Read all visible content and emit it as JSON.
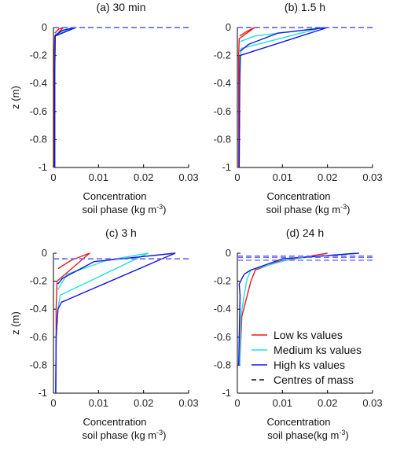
{
  "chart_data": [
    {
      "type": "line",
      "title": "(a) 30 min",
      "xlabel": [
        "Concentration",
        "soil phase (kg m",
        "-3",
        ")"
      ],
      "ylabel": "z (m)",
      "xlim": [
        0,
        0.03
      ],
      "ylim": [
        -1,
        0
      ],
      "xticks": [
        "0",
        "0.01",
        "0.02",
        "0.03"
      ],
      "yticks": [
        "0",
        "-0.2",
        "-0.4",
        "-0.6",
        "-0.8",
        "-1"
      ],
      "series": [
        {
          "key": "low",
          "color": "#e8191f",
          "x": [
            0.0003,
            0.0012,
            0.0022,
            0.0003,
            0.0002,
            0.0002,
            0.0002
          ],
          "y": [
            -0.04,
            -0.01,
            0.0,
            -0.06,
            -0.2,
            -0.6,
            -1.0
          ]
        },
        {
          "key": "med",
          "color": "#22e0e0",
          "x": [
            0.0003,
            0.003,
            0.0042,
            0.0004,
            0.0003,
            0.0003
          ],
          "y": [
            -0.05,
            -0.01,
            0.0,
            -0.06,
            -0.3,
            -1.0
          ]
        },
        {
          "key": "high",
          "color": "#1515d8",
          "x": [
            0.0003,
            0.002,
            0.005,
            0.0004,
            0.0003,
            0.0003
          ],
          "y": [
            -0.06,
            -0.02,
            0.0,
            -0.06,
            -0.3,
            -1.0
          ]
        }
      ],
      "centres": [
        0.0,
        0.0
      ]
    },
    {
      "type": "line",
      "title": "(b) 1.5 h",
      "xlabel": [
        "Concentration",
        "soil phase (kg m",
        "-3",
        ")"
      ],
      "ylabel": "",
      "xlim": [
        0,
        0.03
      ],
      "ylim": [
        -1,
        0
      ],
      "xticks": [
        "0",
        "0.01",
        "0.02",
        "0.03"
      ],
      "yticks": [
        "0",
        "-0.2",
        "-0.4",
        "-0.6",
        "-0.8",
        "-1"
      ],
      "series": [
        {
          "key": "low",
          "color": "#e8191f",
          "x": [
            0.0005,
            0.002,
            0.0038,
            0.0004,
            0.0003,
            0.0003
          ],
          "y": [
            -0.06,
            -0.03,
            0.0,
            -0.08,
            -0.2,
            -1.0
          ]
        },
        {
          "key": "med",
          "color": "#22e0e0",
          "x": [
            0.0006,
            0.004,
            0.012,
            0.019,
            0.0008,
            0.0005,
            0.0004
          ],
          "y": [
            -0.1,
            -0.06,
            -0.03,
            0.0,
            -0.15,
            -0.4,
            -1.0
          ]
        },
        {
          "key": "high",
          "color": "#1515d8",
          "x": [
            0.0006,
            0.0025,
            0.009,
            0.02,
            0.0006,
            0.0005,
            0.0004
          ],
          "y": [
            -0.17,
            -0.12,
            -0.04,
            0.0,
            -0.2,
            -0.5,
            -1.0
          ]
        }
      ],
      "centres": [
        0.0,
        0.0
      ]
    },
    {
      "type": "line",
      "title": "(c) 3 h",
      "xlabel": [
        "Concentration",
        "soil phase (kg m",
        "-3",
        ")"
      ],
      "ylabel": "z (m)",
      "xlim": [
        0,
        0.03
      ],
      "ylim": [
        -1,
        0
      ],
      "xticks": [
        "0",
        "0.01",
        "0.02",
        "0.03"
      ],
      "yticks": [
        "0",
        "-0.2",
        "-0.4",
        "-0.6",
        "-0.8",
        "-1"
      ],
      "series": [
        {
          "key": "low",
          "color": "#e8191f",
          "x": [
            0.001,
            0.004,
            0.008,
            0.0008,
            0.0006,
            0.0006,
            0.0005
          ],
          "y": [
            -0.11,
            -0.05,
            0.0,
            -0.2,
            -0.4,
            -0.6,
            -1.0
          ]
        },
        {
          "key": "med",
          "color": "#22e0e0",
          "x": [
            0.001,
            0.003,
            0.012,
            0.021,
            0.0015,
            0.001,
            0.0006,
            0.0005
          ],
          "y": [
            -0.26,
            -0.15,
            -0.05,
            0.0,
            -0.3,
            -0.4,
            -0.6,
            -1.0
          ]
        },
        {
          "key": "high",
          "color": "#1515d8",
          "x": [
            0.001,
            0.002,
            0.009,
            0.027,
            0.0018,
            0.001,
            0.0006,
            0.0005
          ],
          "y": [
            -0.22,
            -0.18,
            -0.06,
            0.0,
            -0.35,
            -0.4,
            -0.6,
            -1.0
          ]
        }
      ],
      "centres": [
        -0.04,
        -0.04
      ]
    },
    {
      "type": "line",
      "title": "(d) 24 h",
      "xlabel": [
        "Concentration",
        "soil phase(kg m",
        "-3",
        ")"
      ],
      "ylabel": "",
      "xlim": [
        0,
        0.03
      ],
      "ylim": [
        -1,
        0
      ],
      "xticks": [
        "0",
        "0.01",
        "0.02",
        "0.03"
      ],
      "yticks": [
        "0",
        "-0.2",
        "-0.4",
        "-0.6",
        "-0.8",
        "-1"
      ],
      "series": [
        {
          "key": "low",
          "color": "#e8191f",
          "x": [
            0.0005,
            0.001,
            0.0018,
            0.003,
            0.004,
            0.009,
            0.02
          ],
          "y": [
            -0.8,
            -0.45,
            -0.35,
            -0.2,
            -0.12,
            -0.06,
            0.0
          ]
        },
        {
          "key": "med",
          "color": "#22e0e0",
          "x": [
            0.0005,
            0.0008,
            0.0015,
            0.0022,
            0.003,
            0.012,
            0.026
          ],
          "y": [
            -0.8,
            -0.45,
            -0.3,
            -0.18,
            -0.12,
            -0.04,
            0.0
          ]
        },
        {
          "key": "high",
          "color": "#1515d8",
          "x": [
            0.0003,
            0.0006,
            0.0004,
            0.0015,
            0.003,
            0.01,
            0.027
          ],
          "y": [
            -0.8,
            -0.3,
            -0.22,
            -0.15,
            -0.12,
            -0.04,
            0.0
          ]
        }
      ],
      "centres": [
        -0.02,
        -0.03,
        -0.05
      ]
    }
  ],
  "legend": {
    "items": [
      {
        "label": "Low ks values",
        "color": "#e8191f",
        "style": "solid"
      },
      {
        "label": "Medium ks values",
        "color": "#22e0e0",
        "style": "solid"
      },
      {
        "label": "High ks values",
        "color": "#1515d8",
        "style": "solid"
      },
      {
        "label": "Centres of mass",
        "color": "#111111",
        "style": "dashed"
      }
    ]
  },
  "colors": {
    "centre_dash": "#6b6bff",
    "axis": "#000000"
  }
}
